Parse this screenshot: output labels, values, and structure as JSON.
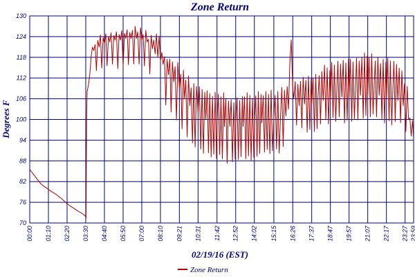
{
  "chart_data": {
    "type": "line",
    "title": "Zone Return",
    "xlabel": "02/19/16 (EST)",
    "ylabel": "Degrees F",
    "ylim": [
      70,
      130
    ],
    "yticks": [
      "70",
      "76",
      "82",
      "88",
      "94",
      "100",
      "106",
      "112",
      "118",
      "124",
      "130"
    ],
    "xticks": [
      "00:00",
      "01:10",
      "02:20",
      "03:30",
      "04:40",
      "05:50",
      "07:00",
      "08:10",
      "09:21",
      "10:31",
      "11:42",
      "12:52",
      "14:02",
      "15:15",
      "16:26",
      "17:37",
      "18:47",
      "19:57",
      "21:07",
      "22:17",
      "23:27",
      "23:59"
    ],
    "x_range": [
      "00:00",
      "23:59"
    ],
    "grid": true,
    "legend_position": "bottom",
    "colors": {
      "series": "#b00000",
      "axis": "#000080",
      "grid": "#000080"
    },
    "series": [
      {
        "name": "Zone Return",
        "x": [
          "00:00",
          "00:20",
          "00:40",
          "00:50",
          "01:00",
          "01:20",
          "01:40",
          "02:00",
          "02:20",
          "02:40",
          "03:00",
          "03:20",
          "03:28",
          "03:31",
          "03:33",
          "03:35",
          "03:40",
          "03:45",
          "03:50",
          "04:00",
          "04:20",
          "04:40",
          "05:00",
          "05:20",
          "05:40",
          "06:00",
          "06:20",
          "06:40",
          "07:00",
          "07:20",
          "07:40",
          "07:50",
          "08:00",
          "08:10",
          "08:20",
          "08:40",
          "09:00",
          "09:21",
          "09:40",
          "10:00",
          "10:31",
          "11:00",
          "11:42",
          "12:10",
          "12:30",
          "12:52",
          "13:20",
          "14:02",
          "14:30",
          "15:15",
          "15:40",
          "16:00",
          "16:10",
          "16:20",
          "16:26",
          "16:30",
          "16:50",
          "17:10",
          "17:37",
          "18:00",
          "18:20",
          "18:47",
          "19:10",
          "19:30",
          "19:57",
          "20:20",
          "20:40",
          "21:07",
          "21:30",
          "21:50",
          "22:17",
          "22:40",
          "23:00",
          "23:20",
          "23:40",
          "23:59"
        ],
        "y": [
          85.5,
          83.5,
          81.5,
          80.8,
          80.3,
          79.2,
          78.2,
          77.0,
          75.6,
          74.5,
          73.5,
          72.6,
          72.0,
          71.5,
          100.0,
          108.0,
          110.0,
          113.0,
          118.0,
          120.0,
          121.0,
          122.0,
          122.5,
          123.0,
          123.0,
          123.5,
          123.5,
          123.5,
          123.0,
          122.5,
          120.5,
          119.0,
          118.0,
          117.0,
          116.0,
          113.0,
          111.0,
          109.0,
          106.0,
          104.0,
          102.0,
          100.0,
          99.0,
          98.0,
          98.0,
          98.0,
          98.0,
          98.5,
          99.0,
          100.0,
          100.5,
          101.0,
          103.0,
          123.0,
          109.0,
          106.0,
          104.0,
          104.5,
          104.5,
          105.5,
          105.5,
          106.0,
          106.0,
          106.5,
          106.5,
          106.5,
          107.0,
          107.0,
          107.5,
          107.0,
          106.5,
          106.0,
          105.5,
          104.0,
          100.0,
          94.5
        ],
        "y_low": [
          85.5,
          83.5,
          81.5,
          80.8,
          80.3,
          79.2,
          78.2,
          77.0,
          75.6,
          74.5,
          73.5,
          72.6,
          72.0,
          71.5,
          100.0,
          104.0,
          105.0,
          110.0,
          112.0,
          113.0,
          113.0,
          114.0,
          114.0,
          114.5,
          115.0,
          115.5,
          115.5,
          115.5,
          115.0,
          114.0,
          110.0,
          112.0,
          110.0,
          108.0,
          105.0,
          103.0,
          100.5,
          98.0,
          95.0,
          93.0,
          91.0,
          89.0,
          88.5,
          87.5,
          87.0,
          88.0,
          88.0,
          88.0,
          89.0,
          90.0,
          90.5,
          91.0,
          95.0,
          103.0,
          101.0,
          99.0,
          97.0,
          97.0,
          94.0,
          97.0,
          98.0,
          99.0,
          99.0,
          99.0,
          99.0,
          99.5,
          99.5,
          100.0,
          100.0,
          99.5,
          98.5,
          98.0,
          97.5,
          97.0,
          96.0,
          94.0
        ],
        "y_high": [
          85.5,
          83.5,
          81.5,
          80.8,
          80.3,
          79.2,
          78.2,
          77.0,
          75.6,
          74.5,
          73.5,
          72.6,
          72.0,
          71.5,
          100.0,
          110.0,
          114.0,
          120.0,
          122.0,
          123.0,
          124.0,
          125.0,
          125.0,
          126.0,
          126.0,
          127.0,
          127.0,
          127.0,
          126.5,
          126.0,
          124.0,
          122.0,
          128.0,
          121.0,
          119.0,
          119.0,
          118.0,
          115.0,
          114.0,
          112.0,
          110.0,
          109.0,
          108.0,
          107.5,
          106.0,
          107.0,
          107.5,
          108.0,
          108.5,
          108.5,
          109.0,
          109.5,
          110.0,
          123.0,
          115.0,
          112.0,
          112.0,
          112.5,
          113.0,
          114.0,
          115.0,
          116.5,
          117.0,
          117.5,
          118.0,
          118.5,
          119.0,
          119.5,
          119.0,
          118.0,
          118.0,
          117.5,
          116.5,
          114.0,
          108.0,
          94.5
        ]
      }
    ]
  }
}
